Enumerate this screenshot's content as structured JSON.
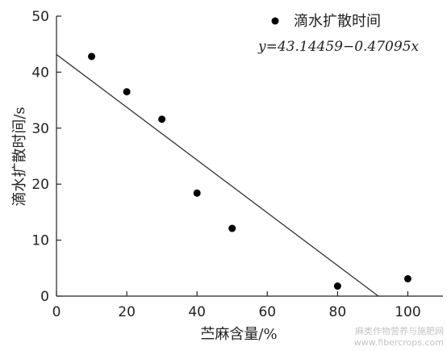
{
  "chart_data": {
    "type": "scatter",
    "title": "",
    "xlabel": "苎麻含量/%",
    "ylabel": "滴水扩散时间/s",
    "xlim": [
      0,
      110
    ],
    "ylim": [
      0,
      50
    ],
    "x_ticks": [
      "0",
      "20",
      "40",
      "60",
      "80",
      "100"
    ],
    "y_ticks": [
      "0",
      "10",
      "20",
      "30",
      "40",
      "50"
    ],
    "grid": false,
    "legend_position": "top-right",
    "series": [
      {
        "name": "滴水扩散时间",
        "marker": "filled-circle",
        "color": "#000000",
        "x": [
          10,
          20,
          30,
          40,
          50,
          80,
          100
        ],
        "y": [
          42.8,
          36.5,
          31.6,
          18.4,
          12.1,
          1.8,
          3.1
        ]
      }
    ],
    "fit_line": {
      "equation": "y=43.14459−0.47095x",
      "intercept": 43.14459,
      "slope": -0.47095,
      "color": "#333333"
    }
  },
  "watermark": {
    "line1": "麻类作物营养与施肥网",
    "line2": "www.fibercrops.com"
  }
}
